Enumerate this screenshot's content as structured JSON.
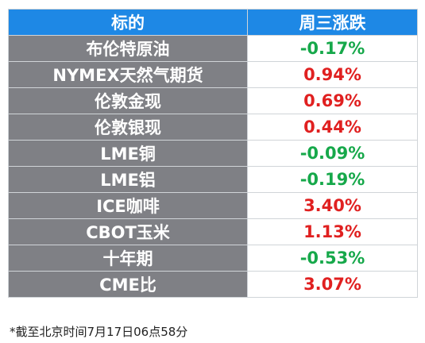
{
  "header": {
    "col_name": "标的",
    "col_change": "周三涨跌"
  },
  "rows": [
    {
      "name": "布伦特原油",
      "change": "-0.17%",
      "direction": "down"
    },
    {
      "name": "NYMEX天然气期货",
      "change": "0.94%",
      "direction": "up"
    },
    {
      "name": "伦敦金现",
      "change": "0.69%",
      "direction": "up"
    },
    {
      "name": "伦敦银现",
      "change": "0.44%",
      "direction": "up"
    },
    {
      "name": "LME铜",
      "change": "-0.09%",
      "direction": "down"
    },
    {
      "name": "LME铝",
      "change": "-0.19%",
      "direction": "down"
    },
    {
      "name": "ICE咖啡",
      "change": "3.40%",
      "direction": "up"
    },
    {
      "name": "CBOT玉米",
      "change": "1.13%",
      "direction": "up"
    },
    {
      "name": "十年期",
      "change": "-0.53%",
      "direction": "down"
    },
    {
      "name": "CME比",
      "change": "3.07%",
      "direction": "up"
    }
  ],
  "footnote": "*截至北京时间7月17日06点58分",
  "colors": {
    "header_bg": "#1e88e5",
    "name_bg": "#7f8085",
    "up": "#e02020",
    "down": "#16a84a"
  }
}
